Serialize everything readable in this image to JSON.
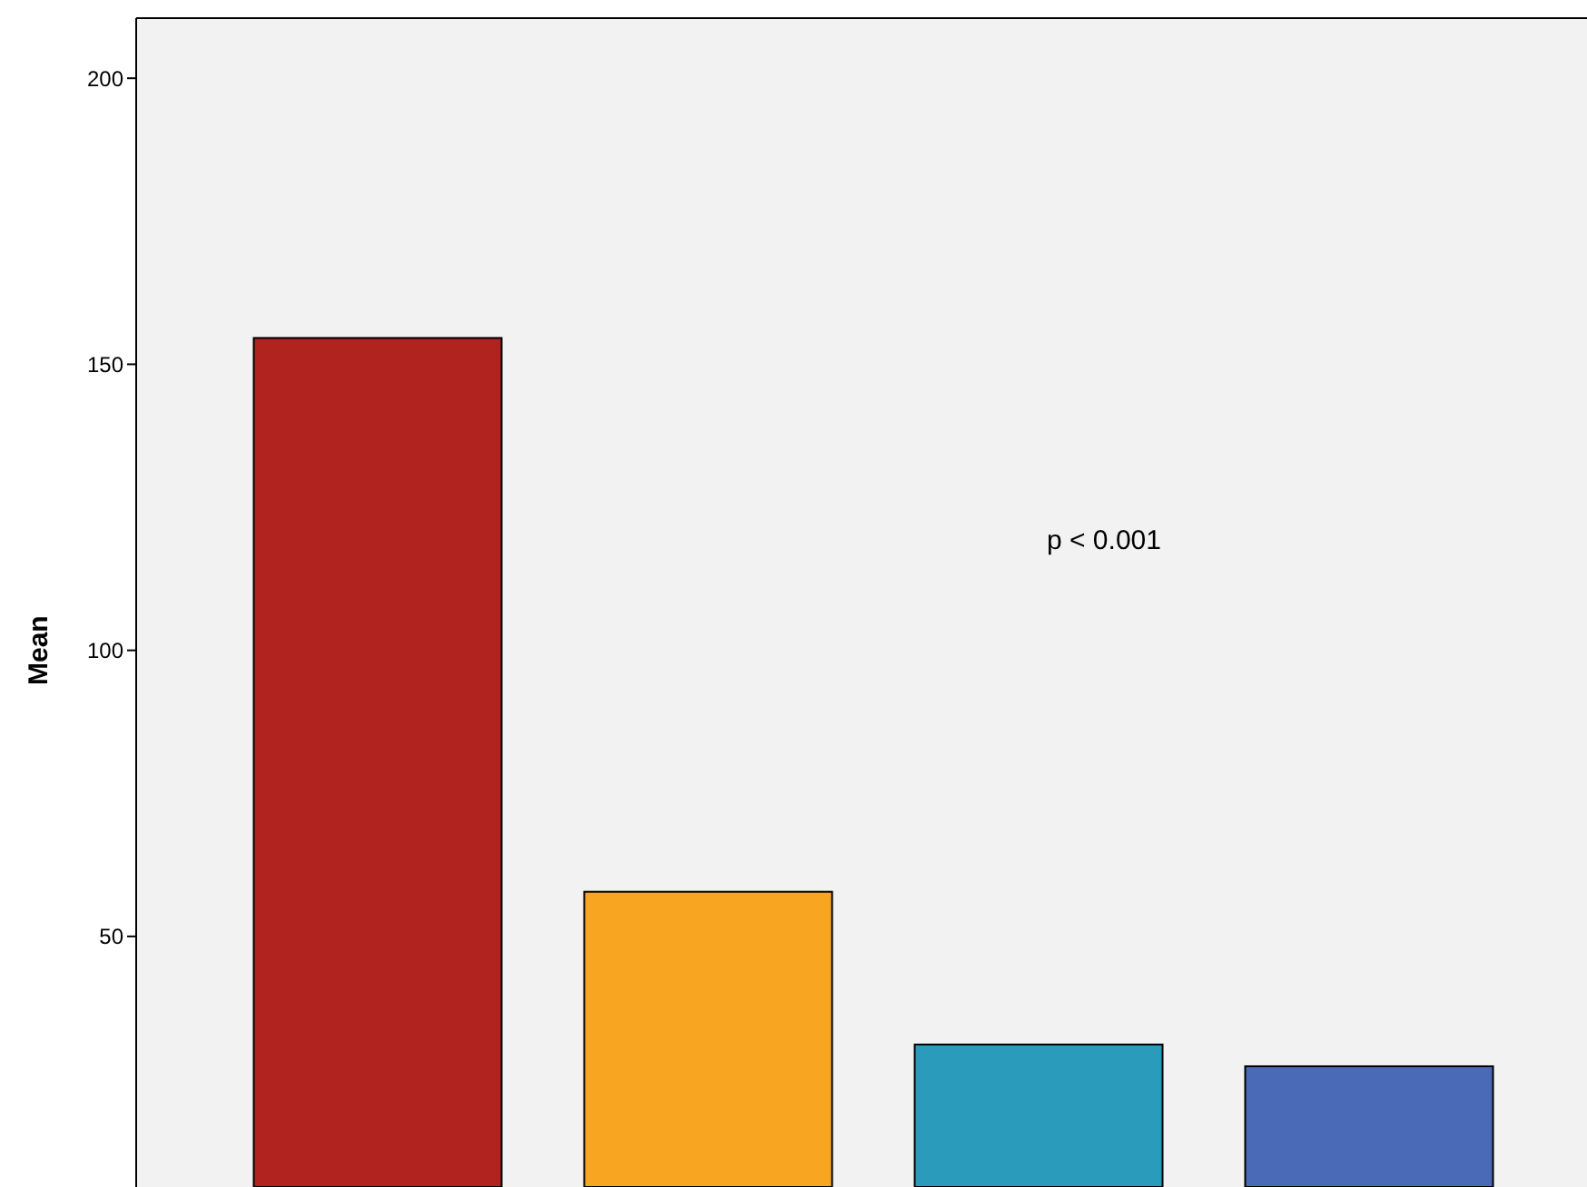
{
  "chart_data": {
    "type": "bar",
    "ylabel": "Mean",
    "annotations": [
      "p < 0.001"
    ],
    "categories": [
      null,
      null,
      null,
      null
    ],
    "values": [
      154.6,
      57.8,
      31.1,
      27.3
    ],
    "colors": [
      "#b0231f",
      "#f8a521",
      "#2a9bba",
      "#4a69b7"
    ],
    "ylim": [
      6.2,
      210.5
    ],
    "yticks": [
      50,
      100,
      150,
      200
    ],
    "grid": false
  }
}
